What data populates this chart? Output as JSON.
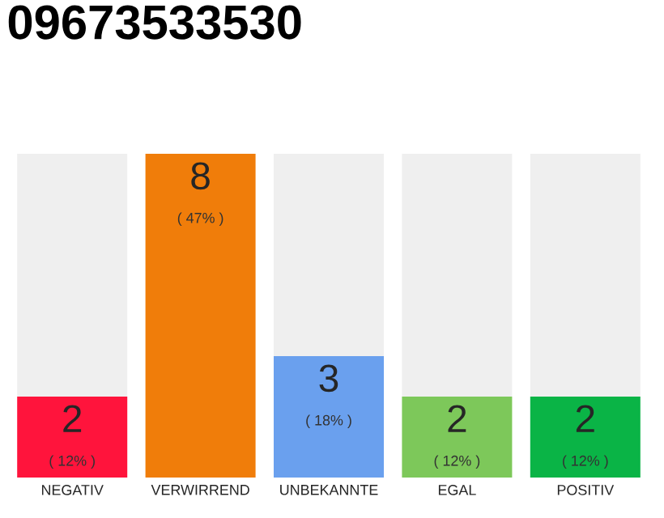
{
  "chart_data": {
    "type": "bar",
    "title": "09673533530",
    "categories": [
      "NEGATIV",
      "VERWIRREND",
      "UNBEKANNTE",
      "EGAL",
      "POSITIV"
    ],
    "ylim": [
      0,
      8
    ],
    "stacked": true,
    "series": [
      {
        "colors": [
          "#ff143c",
          "#f07d0a",
          "#6aa0ee",
          "#7dc85a",
          "#0ab446"
        ],
        "values": [
          2,
          8,
          3,
          2,
          2
        ],
        "data_labels": true
      },
      {
        "color": "#efefef",
        "values": [
          6,
          0,
          5,
          6,
          6
        ]
      }
    ],
    "annotations": [
      "( 12% )",
      "( 47% )",
      "( 18% )",
      "( 12% )",
      "( 12% )"
    ]
  }
}
